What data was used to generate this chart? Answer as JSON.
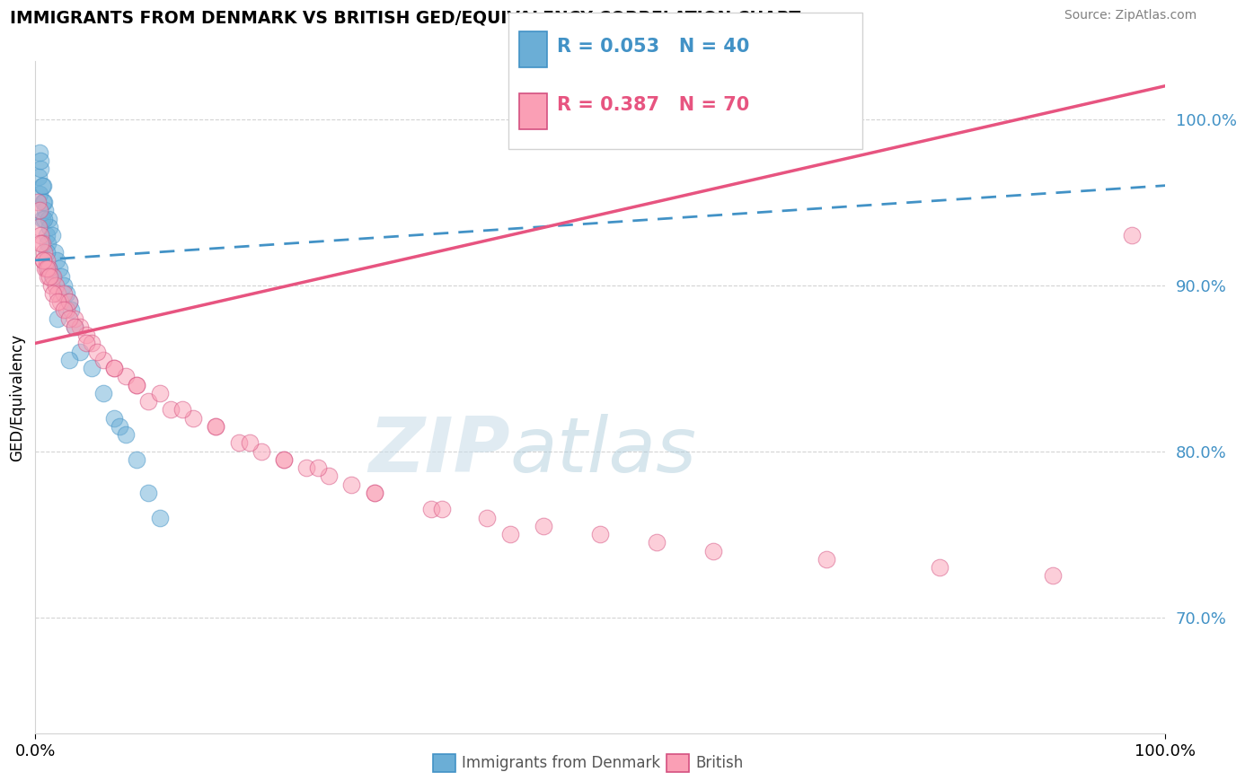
{
  "title": "IMMIGRANTS FROM DENMARK VS BRITISH GED/EQUIVALENCY CORRELATION CHART",
  "source_text": "Source: ZipAtlas.com",
  "ylabel": "GED/Equivalency",
  "xmin": 0.0,
  "xmax": 100.0,
  "ymin": 63.0,
  "ymax": 103.5,
  "ytick_positions": [
    70.0,
    80.0,
    90.0,
    100.0
  ],
  "ytick_labels": [
    "70.0%",
    "80.0%",
    "90.0%",
    "100.0%"
  ],
  "xtick_positions": [
    0.0,
    100.0
  ],
  "xtick_labels": [
    "0.0%",
    "100.0%"
  ],
  "denmark_color": "#6baed6",
  "british_color": "#fa9fb5",
  "denmark_trend_color": "#4292c6",
  "british_trend_color": "#e75480",
  "watermark_zip": "ZIP",
  "watermark_atlas": "atlas",
  "denmark_x": [
    0.3,
    0.4,
    0.5,
    0.6,
    0.7,
    0.8,
    0.9,
    1.0,
    1.1,
    1.2,
    1.3,
    1.5,
    1.7,
    1.9,
    2.1,
    2.3,
    2.5,
    2.8,
    3.0,
    3.2,
    3.5,
    4.0,
    5.0,
    6.0,
    7.0,
    7.5,
    8.0,
    9.0,
    10.0,
    11.0,
    0.4,
    0.5,
    0.6,
    0.7,
    0.8,
    1.0,
    1.2,
    1.5,
    2.0,
    3.0
  ],
  "denmark_y": [
    96.5,
    95.5,
    97.0,
    94.0,
    96.0,
    95.0,
    94.5,
    93.0,
    92.5,
    94.0,
    93.5,
    93.0,
    92.0,
    91.5,
    91.0,
    90.5,
    90.0,
    89.5,
    89.0,
    88.5,
    87.5,
    86.0,
    85.0,
    83.5,
    82.0,
    81.5,
    81.0,
    79.5,
    77.5,
    76.0,
    98.0,
    97.5,
    96.0,
    95.0,
    94.0,
    92.0,
    91.0,
    90.5,
    88.0,
    85.5
  ],
  "british_x": [
    0.2,
    0.3,
    0.4,
    0.5,
    0.6,
    0.7,
    0.8,
    0.9,
    1.0,
    1.1,
    1.2,
    1.4,
    1.6,
    1.8,
    2.0,
    2.2,
    2.5,
    2.8,
    3.0,
    3.5,
    4.0,
    4.5,
    5.0,
    6.0,
    7.0,
    8.0,
    9.0,
    10.0,
    12.0,
    14.0,
    16.0,
    18.0,
    20.0,
    22.0,
    24.0,
    26.0,
    28.0,
    30.0,
    35.0,
    40.0,
    45.0,
    50.0,
    60.0,
    70.0,
    80.0,
    90.0,
    97.0,
    0.5,
    0.7,
    1.0,
    1.3,
    1.6,
    2.0,
    2.5,
    3.0,
    3.5,
    4.5,
    5.5,
    7.0,
    9.0,
    11.0,
    13.0,
    16.0,
    19.0,
    22.0,
    25.0,
    30.0,
    36.0,
    42.0,
    55.0
  ],
  "british_y": [
    95.0,
    93.5,
    94.5,
    93.0,
    92.5,
    91.5,
    92.0,
    91.0,
    91.5,
    90.5,
    91.0,
    90.0,
    90.5,
    90.0,
    89.5,
    89.0,
    89.5,
    88.5,
    89.0,
    88.0,
    87.5,
    87.0,
    86.5,
    85.5,
    85.0,
    84.5,
    84.0,
    83.0,
    82.5,
    82.0,
    81.5,
    80.5,
    80.0,
    79.5,
    79.0,
    78.5,
    78.0,
    77.5,
    76.5,
    76.0,
    75.5,
    75.0,
    74.0,
    73.5,
    73.0,
    72.5,
    93.0,
    92.5,
    91.5,
    91.0,
    90.5,
    89.5,
    89.0,
    88.5,
    88.0,
    87.5,
    86.5,
    86.0,
    85.0,
    84.0,
    83.5,
    82.5,
    81.5,
    80.5,
    79.5,
    79.0,
    77.5,
    76.5,
    75.0,
    74.5
  ]
}
